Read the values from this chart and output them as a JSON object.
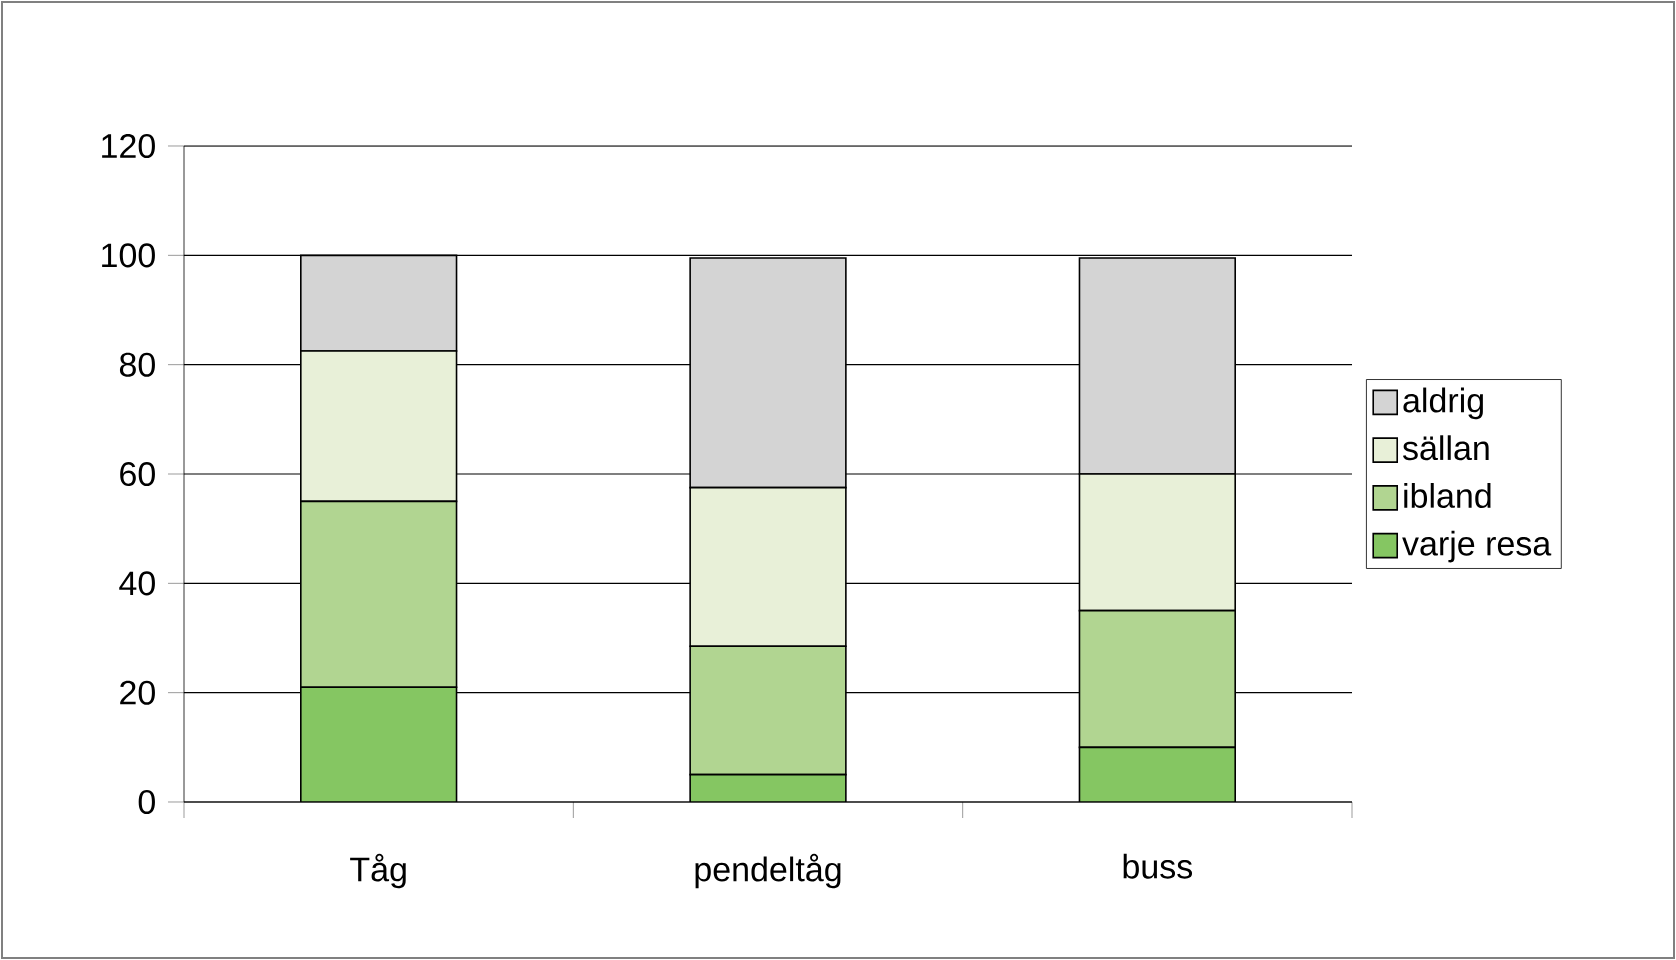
{
  "chart_data": {
    "type": "bar",
    "stacked": true,
    "categories": [
      "Tåg",
      "pendeltåg",
      "buss"
    ],
    "series": [
      {
        "name": "varje resa",
        "color": "#85c662",
        "values": [
          21,
          5,
          10
        ]
      },
      {
        "name": "ibland",
        "color": "#b1d591",
        "values": [
          34,
          23.5,
          25
        ]
      },
      {
        "name": "sällan",
        "color": "#e8f0d8",
        "values": [
          27.5,
          29,
          25
        ]
      },
      {
        "name": "aldrig",
        "color": "#d4d4d4",
        "values": [
          17.5,
          42,
          39.5
        ]
      }
    ],
    "ylim": [
      0,
      120
    ],
    "yticks": [
      0,
      20,
      40,
      60,
      80,
      100,
      120
    ],
    "grid": "y",
    "legend": "right"
  }
}
